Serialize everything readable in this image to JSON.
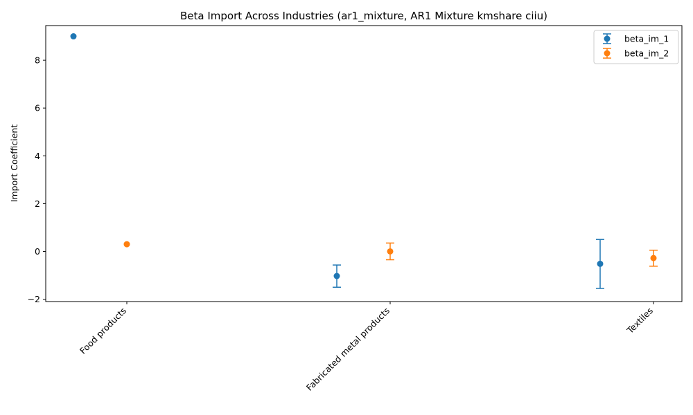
{
  "chart_data": {
    "type": "scatter",
    "title": "Beta Import Across Industries (ar1_mixture, AR1 Mixture kmshare ciiu)",
    "xlabel": "",
    "ylabel": "Import Coefficient",
    "categories": [
      "Food products",
      "Fabricated metal products",
      "Textiles"
    ],
    "ylim": [
      -2.1,
      9.45
    ],
    "yticks": [
      -2,
      0,
      2,
      4,
      6,
      8
    ],
    "yticks_labels": [
      "−2",
      "0",
      "2",
      "4",
      "6",
      "8"
    ],
    "grid": false,
    "legend_position": "top-right",
    "series": [
      {
        "name": "beta_im_1",
        "color": "#1f77b4",
        "values": [
          9.0,
          -1.03,
          -0.52
        ],
        "error_low": [
          null,
          -1.5,
          -1.55
        ],
        "error_high": [
          null,
          -0.57,
          0.5
        ]
      },
      {
        "name": "beta_im_2",
        "color": "#ff7f0e",
        "values": [
          0.3,
          0.0,
          -0.28
        ],
        "error_low": [
          null,
          -0.35,
          -0.62
        ],
        "error_high": [
          null,
          0.35,
          0.05
        ]
      }
    ]
  }
}
